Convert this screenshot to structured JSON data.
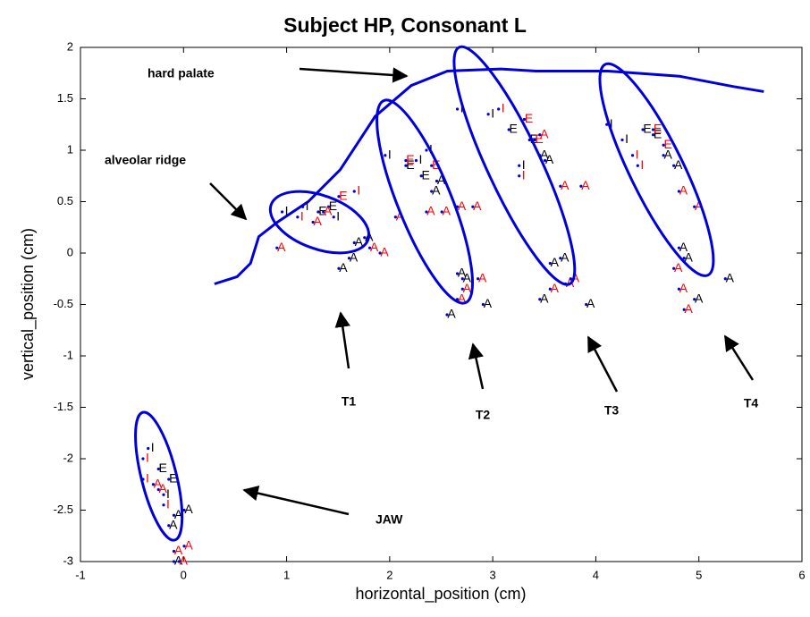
{
  "chart_data": {
    "type": "scatter",
    "title": "Subject HP, Consonant L",
    "xlabel": "horizontal_position (cm)",
    "ylabel": "vertical_position (cm)",
    "xlim": [
      -1,
      6
    ],
    "ylim": [
      -3,
      2
    ],
    "xticks": [
      -1,
      0,
      1,
      2,
      3,
      4,
      5,
      6
    ],
    "yticks": [
      -3,
      -2.5,
      -2,
      -1.5,
      -1,
      -0.5,
      0,
      0.5,
      1,
      1.5,
      2
    ],
    "series": [
      {
        "color": "#000000",
        "x": [
          -0.3,
          -0.2,
          -0.1,
          -0.15,
          -0.05,
          -0.1,
          0.05,
          -0.05,
          1.0,
          1.2,
          1.35,
          1.45,
          1.5,
          1.55,
          1.7,
          1.8,
          1.65,
          2.0,
          2.2,
          2.35,
          2.3,
          2.45,
          2.5,
          2.7,
          2.75,
          2.6,
          2.95,
          2.4,
          2.7,
          3.0,
          3.2,
          3.4,
          3.5,
          3.55,
          3.6,
          3.7,
          3.5,
          3.95,
          3.3,
          4.15,
          4.3,
          4.5,
          4.6,
          4.7,
          4.8,
          4.85,
          4.9,
          5.3,
          5.0
        ],
        "y": [
          -1.9,
          -2.1,
          -2.2,
          -2.35,
          -2.55,
          -2.65,
          -2.5,
          -3.0,
          0.4,
          0.45,
          0.4,
          0.45,
          0.35,
          -0.15,
          0.1,
          0.15,
          -0.05,
          0.95,
          0.85,
          0.75,
          0.9,
          0.6,
          0.7,
          -0.2,
          -0.25,
          -0.6,
          -0.5,
          1.0,
          1.4,
          1.35,
          1.2,
          1.1,
          0.95,
          0.9,
          -0.1,
          -0.05,
          -0.45,
          -0.5,
          0.85,
          1.25,
          1.1,
          1.2,
          1.15,
          0.95,
          0.85,
          0.05,
          -0.05,
          -0.25,
          -0.45
        ],
        "labels": [
          "I",
          "E",
          "E",
          "I",
          "A",
          "A",
          "A",
          "A",
          "I",
          "I",
          "E",
          "E",
          "I",
          "A",
          "A",
          "A",
          "A",
          "I",
          "E",
          "E",
          "I",
          "A",
          "A",
          "A",
          "A",
          "A",
          "A",
          "I",
          "I",
          "I",
          "E",
          "E",
          "A",
          "A",
          "A",
          "A",
          "A",
          "A",
          "I",
          "I",
          "I",
          "E",
          "E",
          "A",
          "A",
          "A",
          "A",
          "A",
          "A"
        ]
      },
      {
        "color": "#ff0000",
        "x": [
          -0.35,
          -0.25,
          -0.2,
          -0.35,
          -0.15,
          0.05,
          -0.05,
          0.0,
          1.15,
          1.3,
          1.4,
          1.55,
          1.7,
          1.85,
          1.95,
          0.95,
          2.2,
          2.45,
          2.55,
          2.7,
          2.85,
          2.75,
          2.9,
          2.7,
          2.1,
          2.4,
          3.1,
          3.35,
          3.45,
          3.5,
          3.7,
          3.9,
          3.75,
          3.8,
          3.6,
          3.3,
          4.4,
          4.6,
          4.7,
          4.85,
          5.0,
          4.85,
          4.9,
          4.8,
          4.45
        ],
        "y": [
          -2.0,
          -2.25,
          -2.3,
          -2.2,
          -2.45,
          -2.85,
          -2.9,
          -3.0,
          0.35,
          0.3,
          0.4,
          0.55,
          0.6,
          0.05,
          0.0,
          0.05,
          0.9,
          0.85,
          0.4,
          0.45,
          0.45,
          -0.35,
          -0.25,
          -0.45,
          0.35,
          0.4,
          1.4,
          1.3,
          1.1,
          1.15,
          0.65,
          0.65,
          -0.3,
          -0.25,
          -0.35,
          0.75,
          0.95,
          1.2,
          1.05,
          0.6,
          0.45,
          -0.35,
          -0.55,
          -0.15,
          0.85
        ],
        "labels": [
          "I",
          "A",
          "A",
          "I",
          "I",
          "A",
          "A",
          "A",
          "I",
          "A",
          "A",
          "E",
          "I",
          "A",
          "A",
          "A",
          "E",
          "E",
          "A",
          "A",
          "A",
          "A",
          "A",
          "A",
          "A",
          "A",
          "I",
          "E",
          "E",
          "A",
          "A",
          "A",
          "A",
          "A",
          "A",
          "I",
          "I",
          "E",
          "E",
          "A",
          "A",
          "A",
          "A",
          "A",
          "I"
        ]
      }
    ],
    "palate": {
      "color": "#0000dd",
      "x": [
        0.3,
        0.52,
        0.65,
        0.73,
        0.91,
        1.21,
        1.52,
        1.86,
        2.21,
        2.56,
        3.08,
        3.42,
        4.12,
        4.81,
        5.33,
        5.63
      ],
      "y": [
        -0.3,
        -0.23,
        -0.1,
        0.16,
        0.3,
        0.5,
        0.81,
        1.33,
        1.63,
        1.77,
        1.79,
        1.77,
        1.77,
        1.72,
        1.62,
        1.57
      ]
    },
    "ellipses": [
      {
        "cx": -0.24,
        "cy": -2.17,
        "rx": 0.17,
        "ry": 0.64,
        "angle": -14
      },
      {
        "cx": 1.32,
        "cy": 0.3,
        "rx": 0.5,
        "ry": 0.26,
        "angle": 20
      },
      {
        "cx": 2.34,
        "cy": 0.5,
        "rx": 0.26,
        "ry": 1.06,
        "angle": -22
      },
      {
        "cx": 3.21,
        "cy": 0.85,
        "rx": 0.26,
        "ry": 1.27,
        "angle": -25
      },
      {
        "cx": 4.59,
        "cy": 0.81,
        "rx": 0.26,
        "ry": 1.14,
        "angle": -26
      }
    ],
    "annotations": [
      "hard palate",
      "alveolar ridge",
      "T1",
      "T2",
      "T3",
      "T4",
      "JAW"
    ]
  }
}
